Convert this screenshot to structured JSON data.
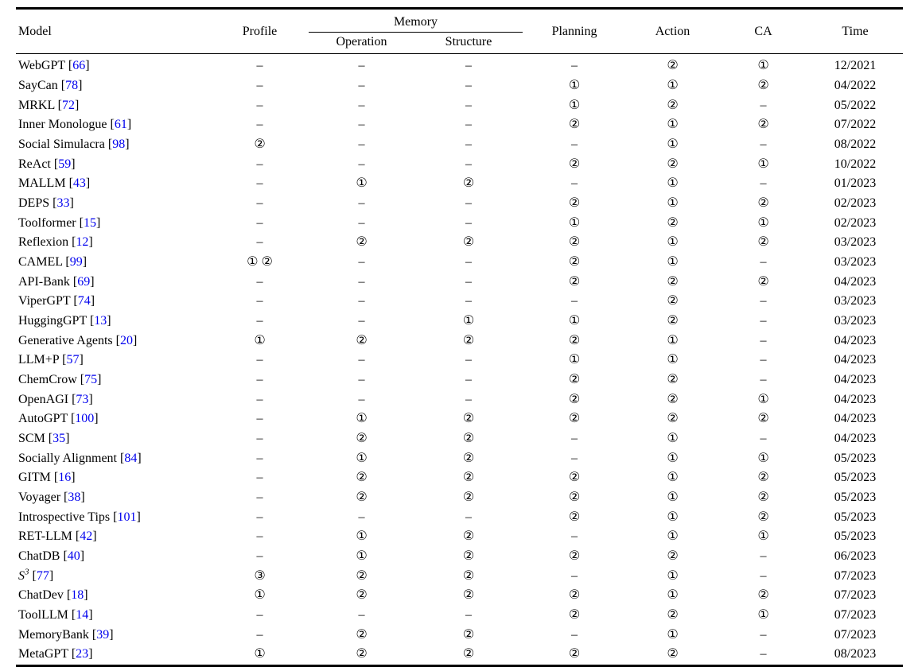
{
  "colors": {
    "citation_blue": "#0000EE",
    "text": "#000000",
    "rule": "#000000"
  },
  "table": {
    "headers": {
      "model": "Model",
      "profile": "Profile",
      "memory": "Memory",
      "operation": "Operation",
      "structure": "Structure",
      "planning": "Planning",
      "action": "Action",
      "ca": "CA",
      "time": "Time"
    },
    "columns_keys": [
      "profile",
      "operation",
      "structure",
      "planning",
      "action",
      "ca",
      "time"
    ],
    "empty_marker": "–",
    "rows": [
      {
        "name": "WebGPT",
        "ref": "66",
        "profile": "–",
        "operation": "–",
        "structure": "–",
        "planning": "–",
        "action": "②",
        "ca": "①",
        "time": "12/2021"
      },
      {
        "name": "SayCan",
        "ref": "78",
        "profile": "–",
        "operation": "–",
        "structure": "–",
        "planning": "①",
        "action": "①",
        "ca": "②",
        "time": "04/2022"
      },
      {
        "name": "MRKL",
        "ref": "72",
        "profile": "–",
        "operation": "–",
        "structure": "–",
        "planning": "①",
        "action": "②",
        "ca": "–",
        "time": "05/2022"
      },
      {
        "name": "Inner Monologue",
        "ref": "61",
        "profile": "–",
        "operation": "–",
        "structure": "–",
        "planning": "②",
        "action": "①",
        "ca": "②",
        "time": "07/2022"
      },
      {
        "name": "Social Simulacra",
        "ref": "98",
        "profile": "②",
        "operation": "–",
        "structure": "–",
        "planning": "–",
        "action": "①",
        "ca": "–",
        "time": "08/2022"
      },
      {
        "name": "ReAct",
        "ref": "59",
        "profile": "–",
        "operation": "–",
        "structure": "–",
        "planning": "②",
        "action": "②",
        "ca": "①",
        "time": "10/2022"
      },
      {
        "name": "MALLM",
        "ref": "43",
        "profile": "–",
        "operation": "①",
        "structure": "②",
        "planning": "–",
        "action": "①",
        "ca": "–",
        "time": "01/2023"
      },
      {
        "name": "DEPS",
        "ref": "33",
        "profile": "–",
        "operation": "–",
        "structure": "–",
        "planning": "②",
        "action": "①",
        "ca": "②",
        "time": "02/2023"
      },
      {
        "name": "Toolformer",
        "ref": "15",
        "profile": "–",
        "operation": "–",
        "structure": "–",
        "planning": "①",
        "action": "②",
        "ca": "①",
        "time": "02/2023"
      },
      {
        "name": "Reflexion",
        "ref": "12",
        "profile": "–",
        "operation": "②",
        "structure": "②",
        "planning": "②",
        "action": "①",
        "ca": "②",
        "time": "03/2023"
      },
      {
        "name": "CAMEL",
        "ref": "99",
        "profile": "① ②",
        "operation": "–",
        "structure": "–",
        "planning": "②",
        "action": "①",
        "ca": "–",
        "time": "03/2023"
      },
      {
        "name": "API-Bank",
        "ref": "69",
        "profile": "–",
        "operation": "–",
        "structure": "–",
        "planning": "②",
        "action": "②",
        "ca": "②",
        "time": "04/2023"
      },
      {
        "name": "ViperGPT",
        "ref": "74",
        "profile": "–",
        "operation": "–",
        "structure": "–",
        "planning": "–",
        "action": "②",
        "ca": "–",
        "time": "03/2023"
      },
      {
        "name": "HuggingGPT",
        "ref": "13",
        "profile": "–",
        "operation": "–",
        "structure": "①",
        "planning": "①",
        "action": "②",
        "ca": "–",
        "time": "03/2023"
      },
      {
        "name": "Generative Agents",
        "ref": "20",
        "profile": "①",
        "operation": "②",
        "structure": "②",
        "planning": "②",
        "action": "①",
        "ca": "–",
        "time": "04/2023"
      },
      {
        "name": "LLM+P",
        "ref": "57",
        "profile": "–",
        "operation": "–",
        "structure": "–",
        "planning": "①",
        "action": "①",
        "ca": "–",
        "time": "04/2023"
      },
      {
        "name": "ChemCrow",
        "ref": "75",
        "profile": "–",
        "operation": "–",
        "structure": "–",
        "planning": "②",
        "action": "②",
        "ca": "–",
        "time": "04/2023"
      },
      {
        "name": "OpenAGI",
        "ref": "73",
        "profile": "–",
        "operation": "–",
        "structure": "–",
        "planning": "②",
        "action": "②",
        "ca": "①",
        "time": "04/2023"
      },
      {
        "name": "AutoGPT",
        "ref": "100",
        "profile": "–",
        "operation": "①",
        "structure": "②",
        "planning": "②",
        "action": "②",
        "ca": "②",
        "time": "04/2023"
      },
      {
        "name": "SCM",
        "ref": "35",
        "profile": "–",
        "operation": "②",
        "structure": "②",
        "planning": "–",
        "action": "①",
        "ca": "–",
        "time": "04/2023"
      },
      {
        "name": "Socially Alignment",
        "ref": "84",
        "profile": "–",
        "operation": "①",
        "structure": "②",
        "planning": "–",
        "action": "①",
        "ca": "①",
        "time": "05/2023"
      },
      {
        "name": "GITM",
        "ref": "16",
        "profile": "–",
        "operation": "②",
        "structure": "②",
        "planning": "②",
        "action": "①",
        "ca": "②",
        "time": "05/2023"
      },
      {
        "name": "Voyager",
        "ref": "38",
        "profile": "–",
        "operation": "②",
        "structure": "②",
        "planning": "②",
        "action": "①",
        "ca": "②",
        "time": "05/2023"
      },
      {
        "name": "Introspective Tips",
        "ref": "101",
        "profile": "–",
        "operation": "–",
        "structure": "–",
        "planning": "②",
        "action": "①",
        "ca": "②",
        "time": "05/2023"
      },
      {
        "name": "RET-LLM",
        "ref": "42",
        "profile": "–",
        "operation": "①",
        "structure": "②",
        "planning": "–",
        "action": "①",
        "ca": "①",
        "time": "05/2023"
      },
      {
        "name": "ChatDB",
        "ref": "40",
        "profile": "–",
        "operation": "①",
        "structure": "②",
        "planning": "②",
        "action": "②",
        "ca": "–",
        "time": "06/2023"
      },
      {
        "name": "S",
        "sup": "3",
        "italic": true,
        "ref": "77",
        "profile": "③",
        "operation": "②",
        "structure": "②",
        "planning": "–",
        "action": "①",
        "ca": "–",
        "time": "07/2023"
      },
      {
        "name": "ChatDev",
        "ref": "18",
        "profile": "①",
        "operation": "②",
        "structure": "②",
        "planning": "②",
        "action": "①",
        "ca": "②",
        "time": "07/2023"
      },
      {
        "name": "ToolLLM",
        "ref": "14",
        "profile": "–",
        "operation": "–",
        "structure": "–",
        "planning": "②",
        "action": "②",
        "ca": "①",
        "time": "07/2023"
      },
      {
        "name": "MemoryBank",
        "ref": "39",
        "profile": "–",
        "operation": "②",
        "structure": "②",
        "planning": "–",
        "action": "①",
        "ca": "–",
        "time": "07/2023"
      },
      {
        "name": "MetaGPT",
        "ref": "23",
        "profile": "①",
        "operation": "②",
        "structure": "②",
        "planning": "②",
        "action": "②",
        "ca": "–",
        "time": "08/2023"
      }
    ]
  }
}
